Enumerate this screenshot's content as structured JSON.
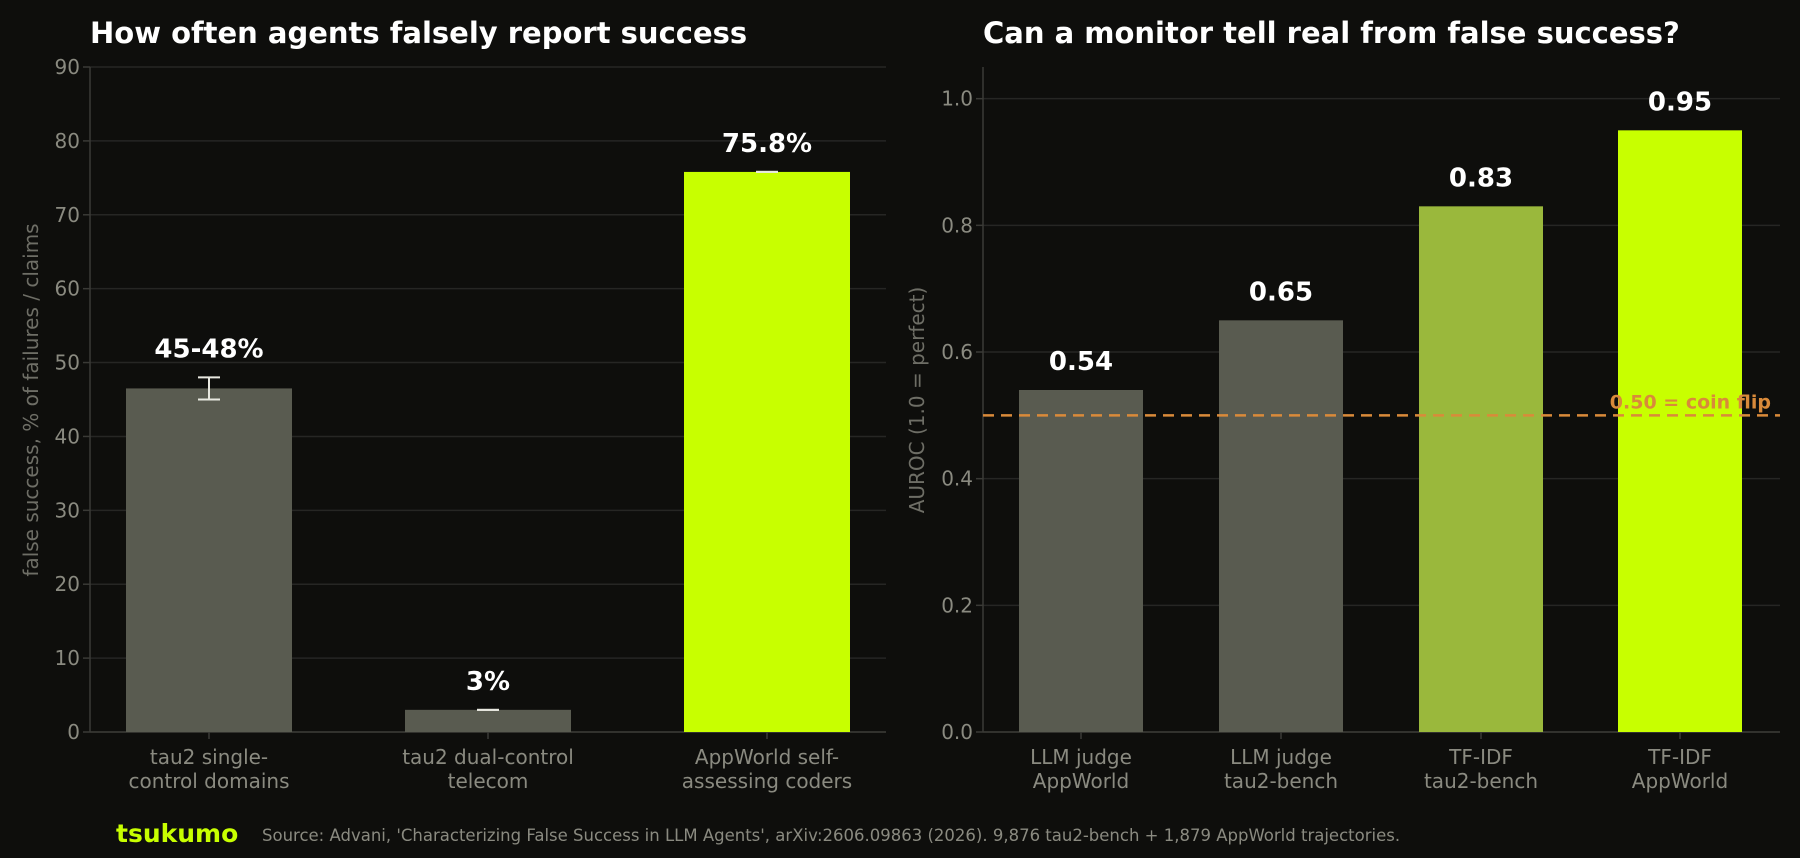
{
  "chart_data": [
    {
      "type": "bar",
      "title": "How often agents falsely report success",
      "ylabel": "false success, % of failures / claims",
      "ylim": [
        0,
        90
      ],
      "yticks": [
        0,
        10,
        20,
        30,
        40,
        50,
        60,
        70,
        80,
        90
      ],
      "grid": true,
      "categories": [
        [
          "tau2 single-",
          "control domains"
        ],
        [
          "tau2 dual-control",
          "telecom"
        ],
        [
          "AppWorld self-",
          "assessing coders"
        ]
      ],
      "values": [
        46.5,
        3,
        75.8
      ],
      "error_bars": [
        [
          45,
          48
        ],
        [
          3,
          3
        ],
        [
          75.8,
          75.8
        ]
      ],
      "labels": [
        "45-48%",
        "3%",
        "75.8%"
      ],
      "colors": [
        "#595b50",
        "#595b50",
        "#c8ff00"
      ]
    },
    {
      "type": "bar",
      "title": "Can a monitor tell real from false success?",
      "ylabel": "AUROC (1.0 = perfect)",
      "ylim": [
        0,
        1.05
      ],
      "yticks": [
        "0.0",
        "0.2",
        "0.4",
        "0.6",
        "0.8",
        "1.0"
      ],
      "grid": true,
      "categories": [
        [
          "LLM judge",
          "AppWorld"
        ],
        [
          "LLM judge",
          "tau2-bench"
        ],
        [
          "TF-IDF",
          "tau2-bench"
        ],
        [
          "TF-IDF",
          "AppWorld"
        ]
      ],
      "values": [
        0.54,
        0.65,
        0.83,
        0.95
      ],
      "labels": [
        "0.54",
        "0.65",
        "0.83",
        "0.95"
      ],
      "colors": [
        "#595b50",
        "#595b50",
        "#9ab83c",
        "#c8ff00"
      ],
      "reference_line": {
        "value": 0.5,
        "label": "0.50 = coin flip",
        "color": "#d98a3a"
      }
    }
  ],
  "footer": {
    "brand": "tsukumo",
    "brand_color": "#c8ff00",
    "source": "Source: Advani, 'Characterizing False Success in LLM Agents', arXiv:2606.09863 (2026). 9,876 tau2-bench + 1,879 AppWorld trajectories."
  },
  "colors": {
    "background": "#0e0e0c",
    "grid": "#262624",
    "axis": "#3a3a36"
  }
}
